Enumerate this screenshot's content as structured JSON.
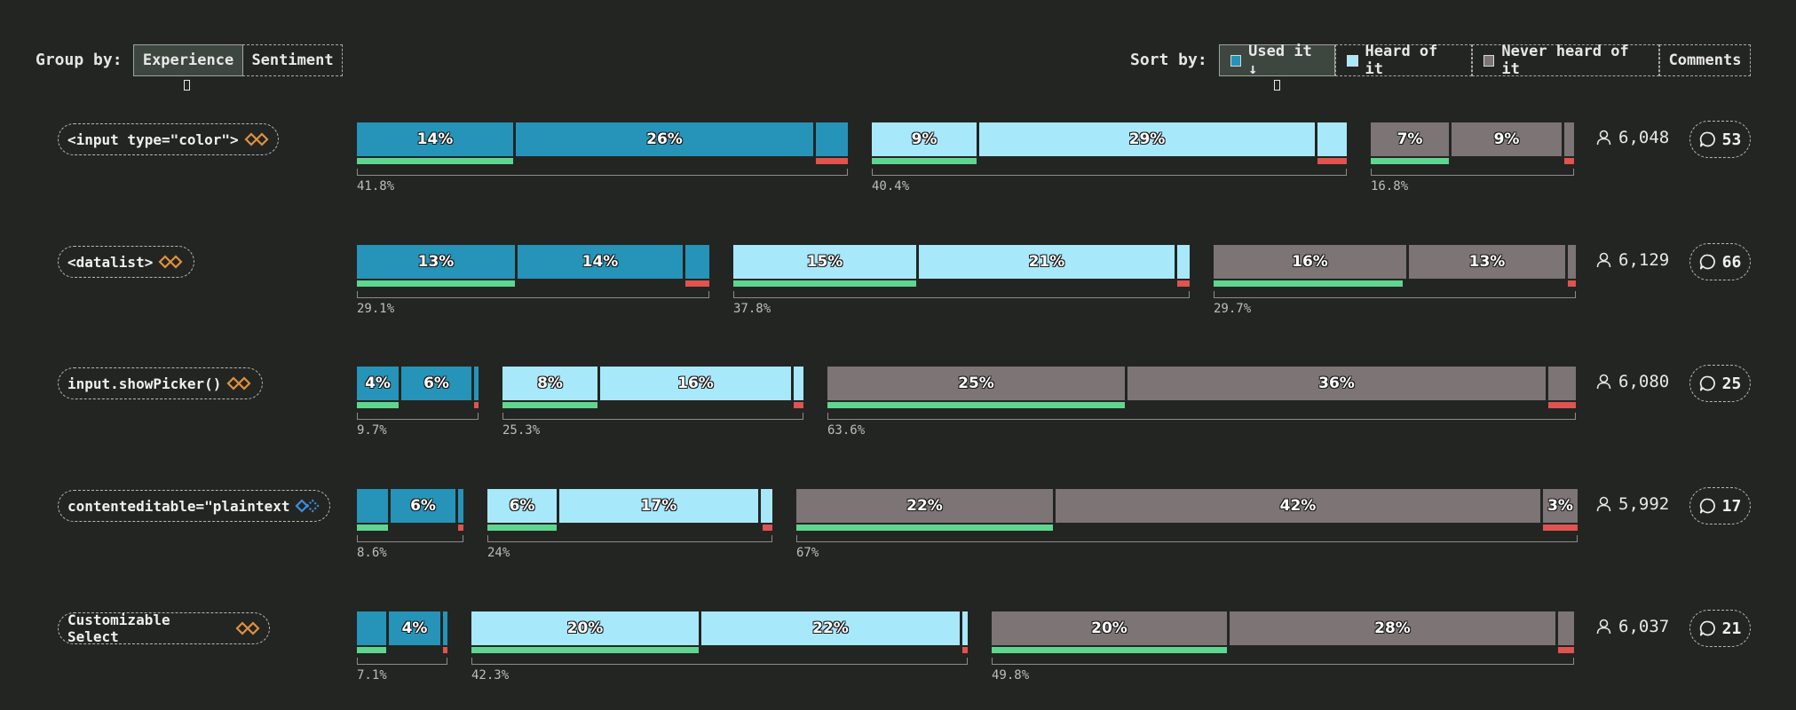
{
  "toolbar": {
    "group_label": "Group by:",
    "group_options": [
      "Experience",
      "Sentiment"
    ],
    "group_active": "Experience",
    "sort_label": "Sort by:",
    "sort_options": [
      {
        "label": "Used it ↓",
        "swatch": "#2694b8",
        "active": true
      },
      {
        "label": "Heard of it",
        "swatch": "#a8e8fb",
        "active": false
      },
      {
        "label": "Never heard of it",
        "swatch": "#7c7475",
        "active": false
      },
      {
        "label": "Comments",
        "swatch": null,
        "active": false
      }
    ]
  },
  "colors": {
    "used": "#2694b8",
    "heard": "#a8e8fb",
    "never": "#7c7475",
    "positive": "#5fd690",
    "negative": "#e0534f",
    "icon_orange": "#e0913f",
    "icon_blue": "#3b8ee0"
  },
  "chart_data": {
    "type": "bar",
    "stacking": "horizontal-stacked-groups",
    "groups": [
      "Used it",
      "Heard of it",
      "Never heard of it"
    ],
    "rows": [
      {
        "feature": "<input type=\"color\">",
        "icon": "baseline-orange-icon",
        "respondents": "6,048",
        "comments": "53",
        "groups": [
          {
            "name": "Used it",
            "total": "41.8%",
            "segments": [
              "14%",
              "26%",
              ""
            ]
          },
          {
            "name": "Heard of it",
            "total": "40.4%",
            "segments": [
              "9%",
              "29%",
              ""
            ]
          },
          {
            "name": "Never heard of it",
            "total": "16.8%",
            "segments": [
              "7%",
              "9%",
              ""
            ]
          }
        ]
      },
      {
        "feature": "<datalist>",
        "icon": "baseline-orange-icon",
        "respondents": "6,129",
        "comments": "66",
        "groups": [
          {
            "name": "Used it",
            "total": "29.1%",
            "segments": [
              "13%",
              "14%",
              ""
            ]
          },
          {
            "name": "Heard of it",
            "total": "37.8%",
            "segments": [
              "15%",
              "21%",
              ""
            ]
          },
          {
            "name": "Never heard of it",
            "total": "29.7%",
            "segments": [
              "16%",
              "13%",
              ""
            ]
          }
        ]
      },
      {
        "feature": "input.showPicker()",
        "icon": "baseline-orange-icon",
        "respondents": "6,080",
        "comments": "25",
        "groups": [
          {
            "name": "Used it",
            "total": "9.7%",
            "segments": [
              "4%",
              "6%",
              ""
            ]
          },
          {
            "name": "Heard of it",
            "total": "25.3%",
            "segments": [
              "8%",
              "16%",
              ""
            ]
          },
          {
            "name": "Never heard of it",
            "total": "63.6%",
            "segments": [
              "25%",
              "36%",
              ""
            ]
          }
        ]
      },
      {
        "feature": "contenteditable=\"plaintext",
        "icon": "baseline-blue-icon",
        "respondents": "5,992",
        "comments": "17",
        "groups": [
          {
            "name": "Used it",
            "total": "8.6%",
            "segments": [
              "",
              "6%",
              ""
            ]
          },
          {
            "name": "Heard of it",
            "total": "24%",
            "segments": [
              "6%",
              "17%",
              ""
            ]
          },
          {
            "name": "Never heard of it",
            "total": "67%",
            "segments": [
              "22%",
              "42%",
              "3%"
            ]
          }
        ]
      },
      {
        "feature": "Customizable Select",
        "icon": "baseline-orange-icon",
        "respondents": "6,037",
        "comments": "21",
        "groups": [
          {
            "name": "Used it",
            "total": "7.1%",
            "segments": [
              "",
              "4%",
              ""
            ]
          },
          {
            "name": "Heard of it",
            "total": "42.3%",
            "segments": [
              "20%",
              "22%",
              ""
            ]
          },
          {
            "name": "Never heard of it",
            "total": "49.8%",
            "segments": [
              "20%",
              "28%",
              ""
            ]
          }
        ]
      }
    ]
  }
}
